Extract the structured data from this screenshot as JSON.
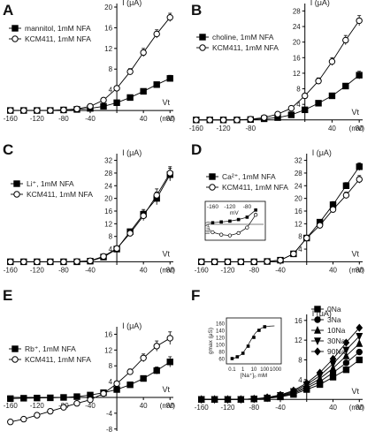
{
  "panels": [
    "A",
    "B",
    "C",
    "D",
    "E",
    "F"
  ],
  "chart_data": [
    {
      "panel": "A",
      "type": "line",
      "ylabel": "I (μA)",
      "xlabel": "Vt",
      "xunit": "(mV)",
      "xticks": [
        -160,
        -120,
        -80,
        -40,
        40,
        80
      ],
      "yticks": [
        4,
        8,
        12,
        16,
        20
      ],
      "xlim": [
        -165,
        85
      ],
      "ylim": [
        -0.5,
        20
      ],
      "series": [
        {
          "name": "mannitol, 1mM NFA",
          "marker": "square-filled",
          "x": [
            -160,
            -140,
            -120,
            -100,
            -80,
            -60,
            -40,
            -20,
            0,
            20,
            40,
            60,
            80
          ],
          "y": [
            0,
            0,
            0,
            0,
            0.1,
            0.2,
            0.4,
            0.8,
            1.5,
            2.5,
            3.7,
            5,
            6.2
          ],
          "err": [
            0,
            0,
            0,
            0,
            0,
            0,
            0,
            0,
            0.2,
            0.3,
            0.4,
            0.5,
            0.6
          ]
        },
        {
          "name": "KCM411, 1mM NFA",
          "marker": "circle-open",
          "x": [
            -160,
            -140,
            -120,
            -100,
            -80,
            -60,
            -40,
            -20,
            0,
            20,
            40,
            60,
            80
          ],
          "y": [
            0,
            0,
            0,
            0,
            0.1,
            0.3,
            0.8,
            2,
            4.3,
            7.5,
            11.2,
            14.8,
            18
          ],
          "err": [
            0,
            0,
            0,
            0,
            0,
            0,
            0,
            0,
            0.4,
            0.6,
            0.8,
            0.8,
            0.8
          ]
        }
      ]
    },
    {
      "panel": "B",
      "type": "line",
      "ylabel": "I (μA)",
      "xlabel": "Vt",
      "xunit": "(mV)",
      "xticks": [
        -160,
        -120,
        -80,
        40,
        80
      ],
      "yticks": [
        4,
        8,
        12,
        16,
        20,
        24,
        28
      ],
      "xlim": [
        -165,
        85
      ],
      "ylim": [
        -0.5,
        29
      ],
      "series": [
        {
          "name": "choline, 1mM NFA",
          "marker": "square-filled",
          "x": [
            -160,
            -140,
            -120,
            -100,
            -80,
            -60,
            -40,
            -20,
            0,
            20,
            40,
            60,
            80
          ],
          "y": [
            0,
            0,
            0,
            0,
            0.1,
            0.3,
            0.6,
            1.3,
            2.6,
            4.3,
            6.2,
            8.7,
            11.5
          ],
          "err": [
            0,
            0,
            0,
            0,
            0,
            0,
            0,
            0,
            0.3,
            0.4,
            0.5,
            0.7,
            1.0
          ]
        },
        {
          "name": "KCM411, 1mM NFA",
          "marker": "circle-open",
          "x": [
            -160,
            -140,
            -120,
            -100,
            -80,
            -60,
            -40,
            -20,
            0,
            20,
            40,
            60,
            80
          ],
          "y": [
            0,
            0,
            0,
            0,
            0.2,
            0.6,
            1.5,
            3,
            6.2,
            10,
            15,
            20.5,
            25.5
          ],
          "err": [
            0,
            0,
            0,
            0,
            0,
            0,
            0,
            0,
            0.5,
            0.8,
            1.0,
            1.2,
            1.3
          ]
        }
      ]
    },
    {
      "panel": "C",
      "type": "line",
      "ylabel": "I (μA)",
      "xlabel": "Vt",
      "xunit": "(mV)",
      "xticks": [
        -160,
        -120,
        -80,
        -40,
        40,
        80
      ],
      "yticks": [
        4,
        8,
        12,
        16,
        20,
        24,
        28,
        32
      ],
      "xlim": [
        -165,
        85
      ],
      "ylim": [
        -1,
        33
      ],
      "series": [
        {
          "name": "Li⁺, 1mM NFA",
          "marker": "square-filled",
          "x": [
            -160,
            -140,
            -120,
            -100,
            -80,
            -60,
            -40,
            -20,
            0,
            20,
            40,
            60,
            80
          ],
          "y": [
            0,
            0,
            0,
            0,
            0,
            0,
            0.2,
            1.5,
            4,
            9.5,
            15,
            20,
            27.5
          ],
          "err": [
            0,
            0,
            0,
            0,
            0,
            0,
            0,
            0,
            0.3,
            0.8,
            1.5,
            2,
            2
          ]
        },
        {
          "name": "KCM411, 1mM NFA",
          "marker": "circle-open",
          "x": [
            -160,
            -140,
            -120,
            -100,
            -80,
            -60,
            -40,
            -20,
            0,
            20,
            40,
            60,
            80
          ],
          "y": [
            0,
            0,
            0,
            0,
            0,
            0.1,
            0.3,
            1.7,
            4.2,
            9,
            14.5,
            21,
            28
          ],
          "err": [
            0,
            0,
            0,
            0,
            0,
            0,
            0,
            0,
            0.3,
            0.8,
            1.5,
            2,
            2
          ]
        }
      ]
    },
    {
      "panel": "D",
      "type": "line",
      "ylabel": "I (μA)",
      "xlabel": "Vt",
      "xunit": "(mV)",
      "xticks": [
        -160,
        -120,
        -80,
        -40,
        40,
        80
      ],
      "yticks": [
        4,
        8,
        12,
        16,
        20,
        24,
        28,
        32
      ],
      "xlim": [
        -165,
        85
      ],
      "ylim": [
        -1,
        33
      ],
      "series": [
        {
          "name": "Ca²⁺, 1mM NFA",
          "marker": "square-filled",
          "x": [
            -160,
            -140,
            -120,
            -100,
            -80,
            -60,
            -40,
            -20,
            0,
            20,
            40,
            60,
            80
          ],
          "y": [
            0,
            0,
            0,
            0,
            0,
            0.1,
            0.5,
            2.5,
            7.5,
            12.5,
            18,
            24,
            30
          ],
          "err": [
            0,
            0,
            0,
            0,
            0,
            0,
            0,
            0,
            0.3,
            0.6,
            1,
            1,
            1.2
          ]
        },
        {
          "name": "KCM411, 1mM NFA",
          "marker": "circle-open",
          "x": [
            -160,
            -140,
            -120,
            -100,
            -80,
            -60,
            -40,
            -20,
            0,
            20,
            40,
            60,
            80
          ],
          "y": [
            0,
            0,
            0,
            0,
            0,
            0.1,
            0.5,
            2.5,
            7.5,
            11.5,
            16.5,
            21,
            26
          ],
          "err": [
            0,
            0,
            0,
            0,
            0,
            0,
            0,
            0,
            0.3,
            0.6,
            1,
            1,
            1.2
          ]
        }
      ],
      "inset": {
        "xlabel": "mV",
        "ylabel": "I(μA)",
        "xticks": [
          -160,
          -120,
          -80
        ],
        "series": [
          {
            "marker": "square-filled",
            "x": [
              -160,
              -140,
              -120,
              -100,
              -80,
              -60
            ],
            "y": [
              0.1,
              0.15,
              0.2,
              0.3,
              0.45,
              0.9
            ]
          },
          {
            "marker": "circle-open",
            "x": [
              -160,
              -140,
              -120,
              -100,
              -80,
              -60
            ],
            "y": [
              -0.5,
              -0.65,
              -0.7,
              -0.55,
              -0.2,
              0.6
            ]
          }
        ]
      }
    },
    {
      "panel": "E",
      "type": "line",
      "ylabel": "I (μA)",
      "xlabel": "Vt",
      "xunit": "(mV)",
      "xticks": [
        -160,
        -120,
        -80,
        -40,
        40,
        80
      ],
      "yticks": [
        -8,
        -4,
        4,
        8,
        12,
        16
      ],
      "xlim": [
        -165,
        85
      ],
      "ylim": [
        -8.5,
        17
      ],
      "series": [
        {
          "name": "Rb⁺, 1mM NFA",
          "marker": "square-filled",
          "x": [
            -160,
            -140,
            -120,
            -100,
            -80,
            -60,
            -40,
            -20,
            0,
            20,
            40,
            60,
            80
          ],
          "y": [
            -0.3,
            -0.2,
            -0.15,
            -0.1,
            0,
            0.2,
            0.6,
            1.2,
            2,
            3.2,
            4.8,
            6.8,
            9
          ],
          "err": [
            0,
            0,
            0,
            0,
            0,
            0,
            0,
            0,
            0.3,
            0.4,
            0.6,
            0.9,
            1.3
          ]
        },
        {
          "name": "KCM411, 1mM NFA",
          "marker": "circle-open",
          "x": [
            -160,
            -140,
            -120,
            -100,
            -80,
            -60,
            -40,
            -20,
            0,
            20,
            40,
            60,
            80
          ],
          "y": [
            -6.2,
            -5.5,
            -4.5,
            -3.5,
            -2.5,
            -1.5,
            -0.6,
            1,
            3.5,
            6.5,
            10,
            13,
            15
          ],
          "err": [
            0.5,
            0.4,
            0.4,
            0.3,
            0.3,
            0.2,
            0.2,
            0.3,
            0.5,
            0.7,
            1,
            1.3,
            1.6
          ]
        }
      ]
    },
    {
      "panel": "F",
      "type": "line",
      "ylabel": "I (μA)",
      "xlabel": "Vt",
      "xunit": "(mV)",
      "xticks": [
        -160,
        -120,
        -80,
        -40,
        40,
        80
      ],
      "yticks": [
        4,
        8,
        12,
        16
      ],
      "xlim": [
        -165,
        85
      ],
      "ylim": [
        -0.5,
        16.5
      ],
      "series": [
        {
          "name": "0Na",
          "marker": "square-filled",
          "x": [
            -160,
            -140,
            -120,
            -100,
            -80,
            -60,
            -40,
            -20,
            0,
            20,
            40,
            60,
            80
          ],
          "y": [
            0,
            0,
            0,
            0,
            0.1,
            0.2,
            0.5,
            1,
            2,
            3,
            4.5,
            6,
            8
          ]
        },
        {
          "name": "3Na",
          "marker": "circle-filled",
          "x": [
            -160,
            -140,
            -120,
            -100,
            -80,
            -60,
            -40,
            -20,
            0,
            20,
            40,
            60,
            80
          ],
          "y": [
            0,
            0,
            0,
            0,
            0.1,
            0.3,
            0.6,
            1.2,
            2.3,
            3.6,
            5.4,
            7.4,
            9.6
          ]
        },
        {
          "name": "10Na",
          "marker": "triangle-up",
          "x": [
            -160,
            -140,
            -120,
            -100,
            -80,
            -60,
            -40,
            -20,
            0,
            20,
            40,
            60,
            80
          ],
          "y": [
            0,
            0,
            0,
            0,
            0.1,
            0.3,
            0.7,
            1.4,
            2.6,
            4.2,
            6.3,
            8.8,
            11.3
          ]
        },
        {
          "name": "30Na",
          "marker": "triangle-down",
          "x": [
            -160,
            -140,
            -120,
            -100,
            -80,
            -60,
            -40,
            -20,
            0,
            20,
            40,
            60,
            80
          ],
          "y": [
            0,
            0,
            0,
            0,
            0.1,
            0.3,
            0.8,
            1.6,
            3,
            4.8,
            7.2,
            10,
            12.8
          ]
        },
        {
          "name": "90Na",
          "marker": "diamond",
          "x": [
            -160,
            -140,
            -120,
            -100,
            -80,
            -60,
            -40,
            -20,
            0,
            20,
            40,
            60,
            80
          ],
          "y": [
            0,
            0,
            0,
            0,
            0.1,
            0.4,
            0.9,
            1.8,
            3.3,
            5.4,
            8.2,
            11.5,
            14.5
          ]
        }
      ],
      "inset": {
        "ylabel": "gmax (μS)",
        "xlabel": "[Na⁺]ₒ mM",
        "xticks": [
          "0.1",
          "1",
          "10",
          "100",
          "1000"
        ],
        "yticks": [
          60,
          80,
          100,
          120,
          140,
          160
        ],
        "x": [
          0.1,
          0.3,
          1,
          3,
          10,
          30,
          100
        ],
        "y": [
          60,
          65,
          75,
          95,
          120,
          140,
          150
        ]
      }
    }
  ]
}
